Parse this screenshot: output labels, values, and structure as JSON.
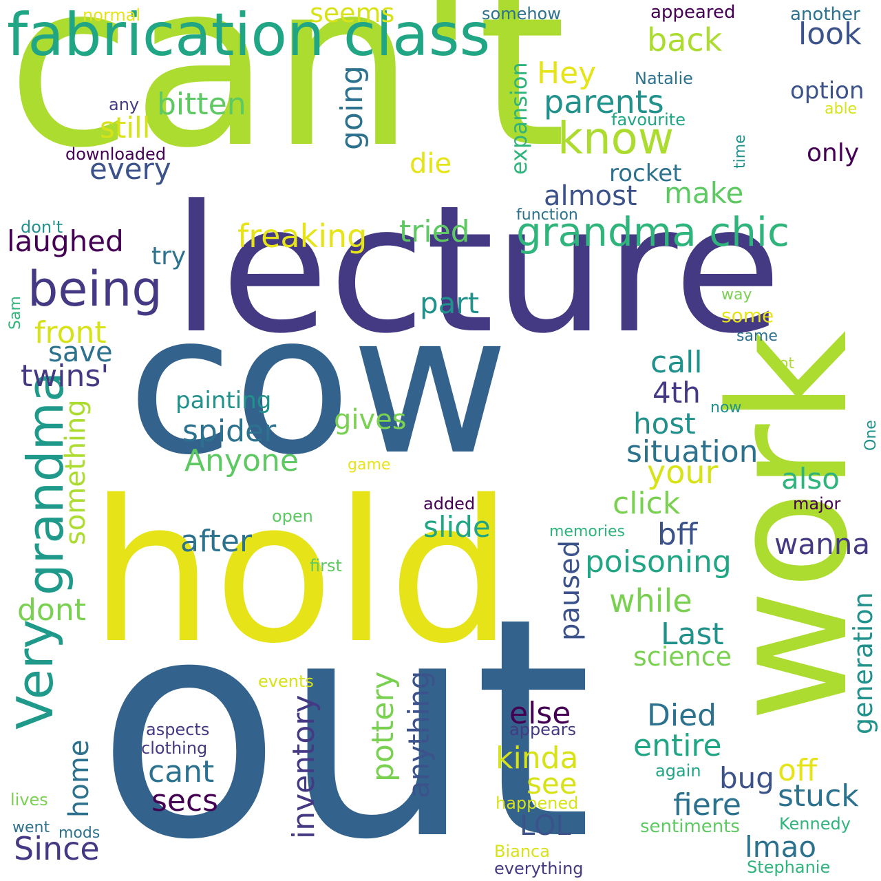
{
  "words": [
    {
      "text": "can't",
      "color": "#addc30",
      "rotated": false
    },
    {
      "text": "lecture",
      "color": "#443983",
      "rotated": false
    },
    {
      "text": "cow",
      "color": "#33638d",
      "rotated": false
    },
    {
      "text": "hold",
      "color": "#e6e419",
      "rotated": false
    },
    {
      "text": "out",
      "color": "#33638d",
      "rotated": false
    },
    {
      "text": "work",
      "color": "#addc30",
      "rotated": true
    },
    {
      "text": "fabrication class",
      "color": "#21a685",
      "rotated": false
    },
    {
      "text": "grandma chic",
      "color": "#2fb47c",
      "rotated": false
    },
    {
      "text": "being",
      "color": "#443983",
      "rotated": false
    },
    {
      "text": "know",
      "color": "#addc30",
      "rotated": false
    },
    {
      "text": "Very",
      "color": "#1f9a8a",
      "rotated": true
    },
    {
      "text": "grandma",
      "color": "#1f9a8a",
      "rotated": true
    },
    {
      "text": "seems",
      "color": "#d8e219",
      "rotated": false
    },
    {
      "text": "back",
      "color": "#addc30",
      "rotated": false
    },
    {
      "text": "look",
      "color": "#3b528b",
      "rotated": false
    },
    {
      "text": "Hey",
      "color": "#e6e419",
      "rotated": false
    },
    {
      "text": "parents",
      "color": "#21918c",
      "rotated": false
    },
    {
      "text": "bitten",
      "color": "#5ec962",
      "rotated": false
    },
    {
      "text": "still",
      "color": "#d8e219",
      "rotated": false
    },
    {
      "text": "every",
      "color": "#3b528b",
      "rotated": false
    },
    {
      "text": "going",
      "color": "#2c728e",
      "rotated": true
    },
    {
      "text": "die",
      "color": "#e6e419",
      "rotated": false
    },
    {
      "text": "expansion",
      "color": "#2fb47c",
      "rotated": true
    },
    {
      "text": "rocket",
      "color": "#2c728e",
      "rotated": false
    },
    {
      "text": "almost",
      "color": "#3b528b",
      "rotated": false
    },
    {
      "text": "make",
      "color": "#5ec962",
      "rotated": false
    },
    {
      "text": "freaking",
      "color": "#e6e419",
      "rotated": false
    },
    {
      "text": "tried",
      "color": "#5ec962",
      "rotated": false
    },
    {
      "text": "laughed",
      "color": "#440154",
      "rotated": false
    },
    {
      "text": "try",
      "color": "#2c728e",
      "rotated": false
    },
    {
      "text": "part",
      "color": "#21918c",
      "rotated": false
    },
    {
      "text": "front",
      "color": "#d8e219",
      "rotated": false
    },
    {
      "text": "save",
      "color": "#2c728e",
      "rotated": false
    },
    {
      "text": "twins'",
      "color": "#443983",
      "rotated": false
    },
    {
      "text": "call",
      "color": "#21918c",
      "rotated": false
    },
    {
      "text": "4th",
      "color": "#443983",
      "rotated": false
    },
    {
      "text": "host",
      "color": "#21918c",
      "rotated": false
    },
    {
      "text": "situation",
      "color": "#2c728e",
      "rotated": false
    },
    {
      "text": "painting",
      "color": "#21918c",
      "rotated": false
    },
    {
      "text": "spider",
      "color": "#2c728e",
      "rotated": false
    },
    {
      "text": "Anyone",
      "color": "#5ec962",
      "rotated": false
    },
    {
      "text": "something",
      "color": "#addc30",
      "rotated": true
    },
    {
      "text": "gives",
      "color": "#7ad151",
      "rotated": false
    },
    {
      "text": "your",
      "color": "#d8e219",
      "rotated": false
    },
    {
      "text": "also",
      "color": "#2fb47c",
      "rotated": false
    },
    {
      "text": "click",
      "color": "#7ad151",
      "rotated": false
    },
    {
      "text": "after",
      "color": "#2c728e",
      "rotated": false
    },
    {
      "text": "slide",
      "color": "#21a685",
      "rotated": false
    },
    {
      "text": "bff",
      "color": "#3b528b",
      "rotated": false
    },
    {
      "text": "wanna",
      "color": "#443983",
      "rotated": false
    },
    {
      "text": "poisoning",
      "color": "#21a685",
      "rotated": false
    },
    {
      "text": "paused",
      "color": "#3b528b",
      "rotated": true
    },
    {
      "text": "dont",
      "color": "#7ad151",
      "rotated": false
    },
    {
      "text": "while",
      "color": "#7ad151",
      "rotated": false
    },
    {
      "text": "Last",
      "color": "#21918c",
      "rotated": false
    },
    {
      "text": "science",
      "color": "#7ad151",
      "rotated": false
    },
    {
      "text": "generation",
      "color": "#21918c",
      "rotated": true
    },
    {
      "text": "pottery",
      "color": "#7ad151",
      "rotated": true
    },
    {
      "text": "anything",
      "color": "#3b528b",
      "rotated": true
    },
    {
      "text": "inventory",
      "color": "#443983",
      "rotated": true
    },
    {
      "text": "else",
      "color": "#440154",
      "rotated": false
    },
    {
      "text": "Died",
      "color": "#2c728e",
      "rotated": false
    },
    {
      "text": "entire",
      "color": "#21a685",
      "rotated": false
    },
    {
      "text": "home",
      "color": "#2c728e",
      "rotated": true
    },
    {
      "text": "cant",
      "color": "#2c728e",
      "rotated": false
    },
    {
      "text": "secs",
      "color": "#440154",
      "rotated": false
    },
    {
      "text": "kinda",
      "color": "#d8e219",
      "rotated": false
    },
    {
      "text": "see",
      "color": "#d8e219",
      "rotated": false
    },
    {
      "text": "off",
      "color": "#e6e419",
      "rotated": false
    },
    {
      "text": "bug",
      "color": "#3b528b",
      "rotated": false
    },
    {
      "text": "stuck",
      "color": "#2c728e",
      "rotated": false
    },
    {
      "text": "fiere",
      "color": "#2c728e",
      "rotated": false
    },
    {
      "text": "LOL",
      "color": "#3b528b",
      "rotated": false
    },
    {
      "text": "lmao",
      "color": "#2c728e",
      "rotated": false
    },
    {
      "text": "Since",
      "color": "#443983",
      "rotated": false
    },
    {
      "text": "only",
      "color": "#440154",
      "rotated": false
    },
    {
      "text": "option",
      "color": "#3b528b",
      "rotated": false
    },
    {
      "text": "normal",
      "color": "#e6e419",
      "rotated": false
    },
    {
      "text": "somehow",
      "color": "#2c728e",
      "rotated": false
    },
    {
      "text": "appeared",
      "color": "#440154",
      "rotated": false
    },
    {
      "text": "another",
      "color": "#2c728e",
      "rotated": false
    },
    {
      "text": "Natalie",
      "color": "#2c728e",
      "rotated": false
    },
    {
      "text": "able",
      "color": "#d8e219",
      "rotated": false
    },
    {
      "text": "favourite",
      "color": "#21a685",
      "rotated": false
    },
    {
      "text": "time",
      "color": "#21918c",
      "rotated": true
    },
    {
      "text": "any",
      "color": "#443983",
      "rotated": false
    },
    {
      "text": "downloaded",
      "color": "#440154",
      "rotated": false
    },
    {
      "text": "function",
      "color": "#2c728e",
      "rotated": false
    },
    {
      "text": "don't",
      "color": "#21918c",
      "rotated": false
    },
    {
      "text": "way",
      "color": "#7ad151",
      "rotated": false
    },
    {
      "text": "some",
      "color": "#e6e419",
      "rotated": false
    },
    {
      "text": "same",
      "color": "#2c728e",
      "rotated": false
    },
    {
      "text": "not",
      "color": "#addc30",
      "rotated": false
    },
    {
      "text": "now",
      "color": "#21918c",
      "rotated": false
    },
    {
      "text": "One",
      "color": "#21918c",
      "rotated": true
    },
    {
      "text": "Sam",
      "color": "#2fb47c",
      "rotated": true
    },
    {
      "text": "game",
      "color": "#e6e419",
      "rotated": false
    },
    {
      "text": "added",
      "color": "#440154",
      "rotated": false
    },
    {
      "text": "major",
      "color": "#440154",
      "rotated": false
    },
    {
      "text": "open",
      "color": "#5ec962",
      "rotated": false
    },
    {
      "text": "memories",
      "color": "#2fb47c",
      "rotated": false
    },
    {
      "text": "first",
      "color": "#5ec962",
      "rotated": false
    },
    {
      "text": "events",
      "color": "#d8e219",
      "rotated": false
    },
    {
      "text": "aspects",
      "color": "#443983",
      "rotated": false
    },
    {
      "text": "clothing",
      "color": "#443983",
      "rotated": false
    },
    {
      "text": "appears",
      "color": "#443983",
      "rotated": false
    },
    {
      "text": "again",
      "color": "#21a685",
      "rotated": false
    },
    {
      "text": "happened",
      "color": "#d8e219",
      "rotated": false
    },
    {
      "text": "lives",
      "color": "#7ad151",
      "rotated": false
    },
    {
      "text": "went",
      "color": "#2c728e",
      "rotated": false
    },
    {
      "text": "mods",
      "color": "#2c728e",
      "rotated": false
    },
    {
      "text": "sentiments",
      "color": "#5ec962",
      "rotated": false
    },
    {
      "text": "Kennedy",
      "color": "#2fb47c",
      "rotated": false
    },
    {
      "text": "Bianca",
      "color": "#d8e219",
      "rotated": false
    },
    {
      "text": "everything",
      "color": "#443983",
      "rotated": false
    },
    {
      "text": "Stephanie",
      "color": "#2fb47c",
      "rotated": false
    }
  ]
}
